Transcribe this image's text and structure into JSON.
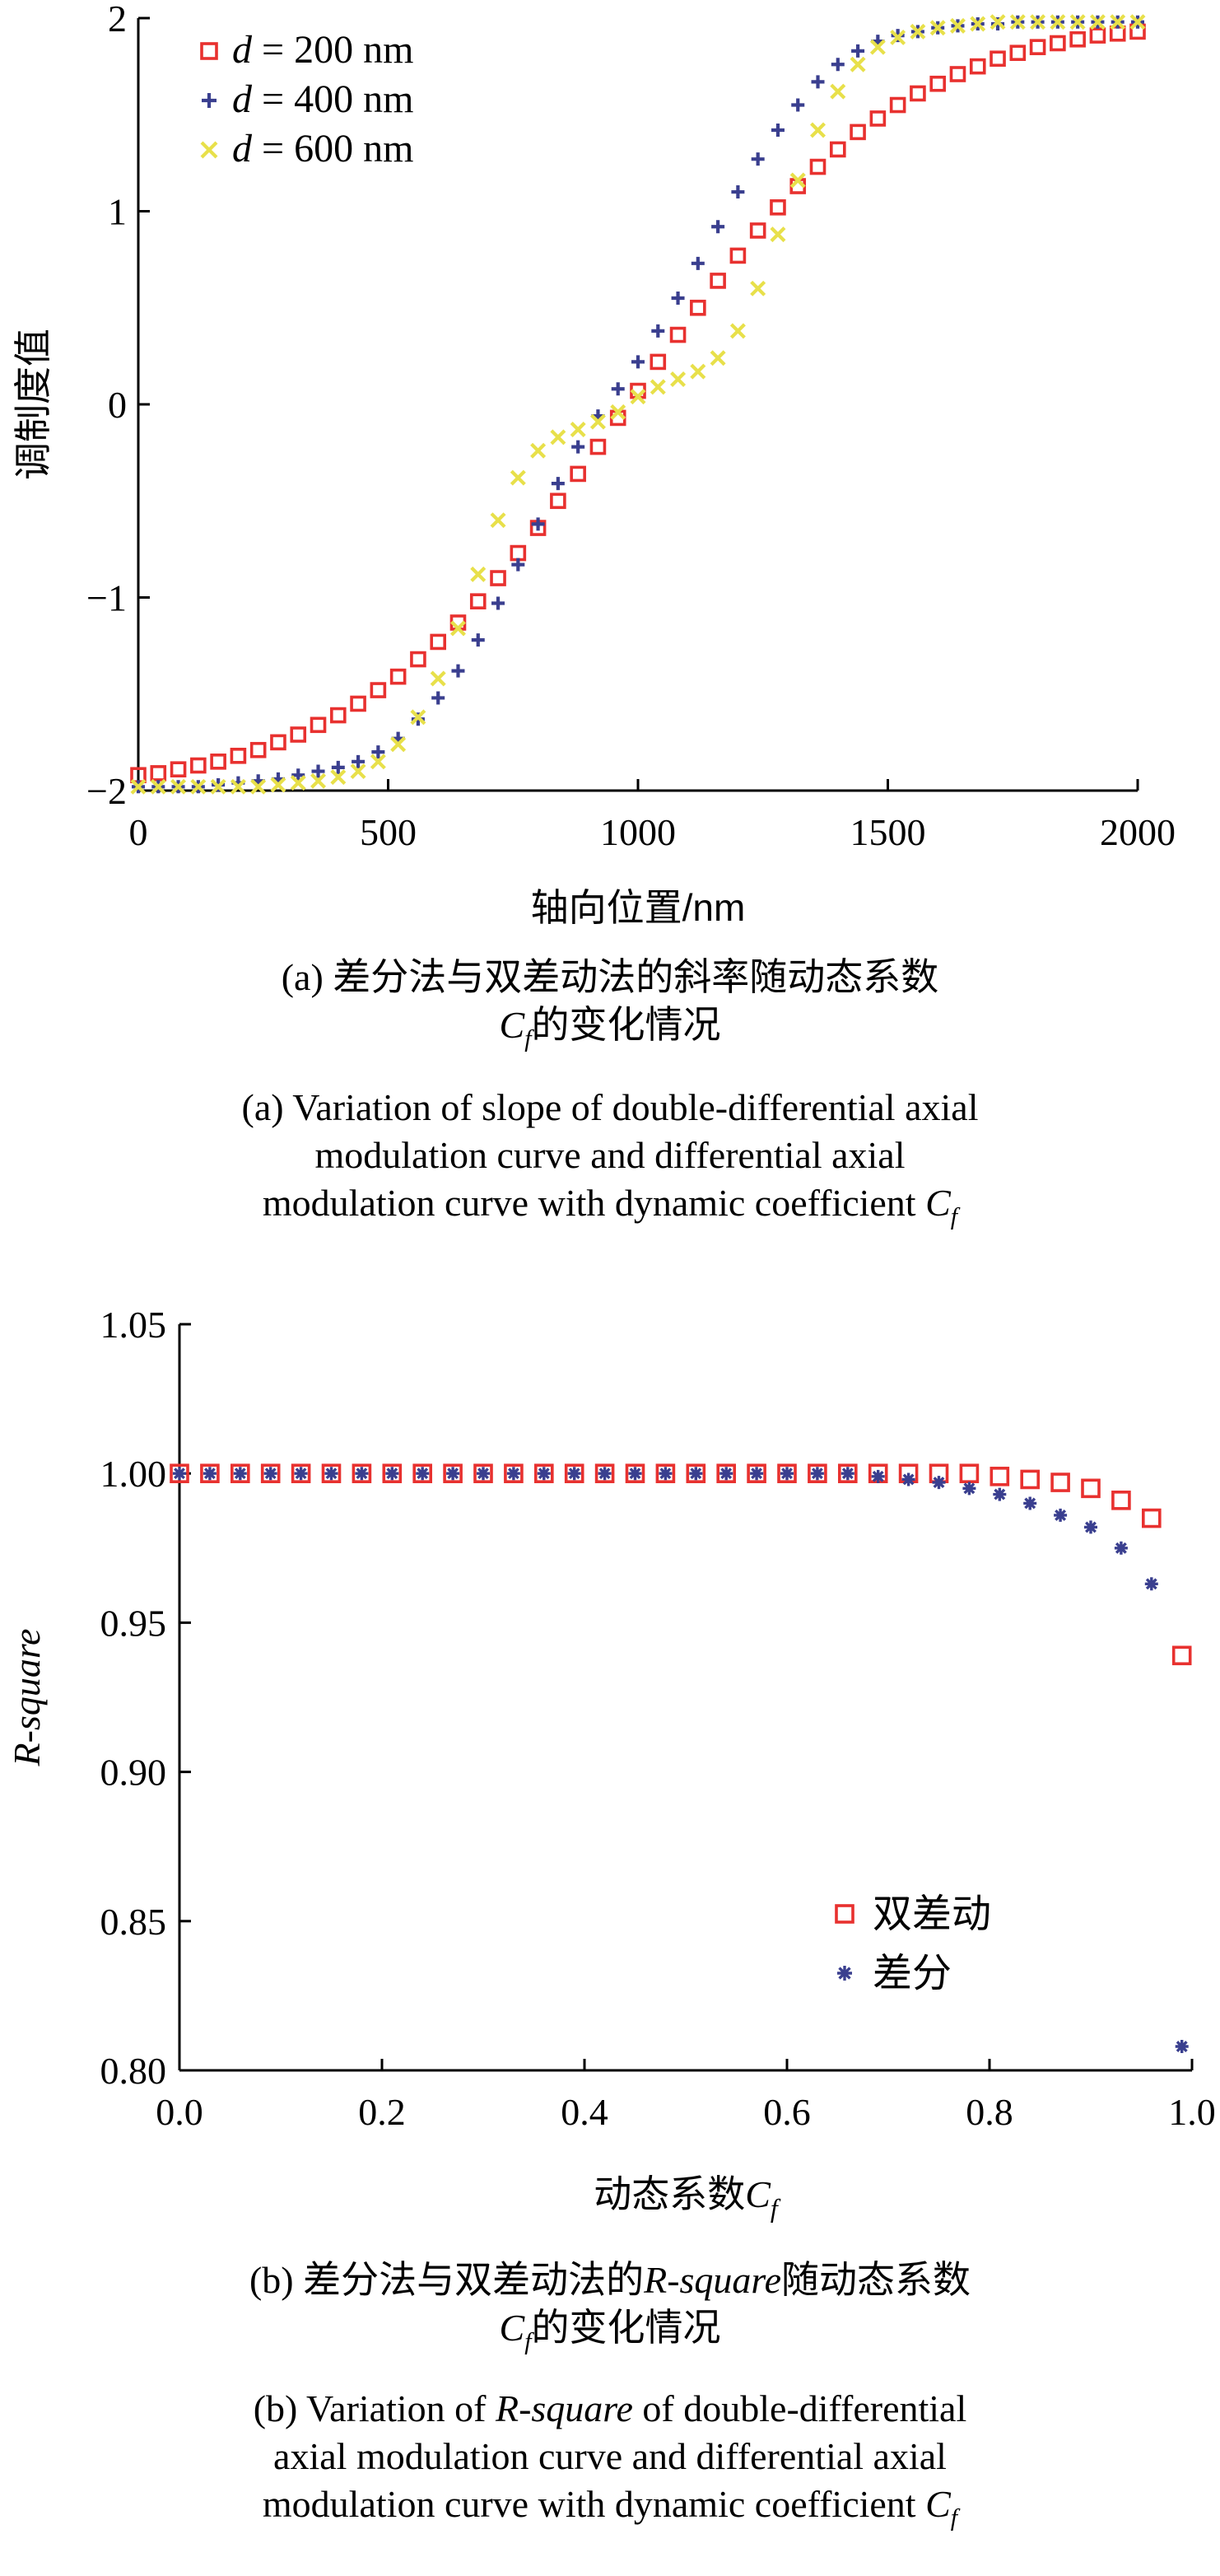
{
  "chart_data": [
    {
      "type": "scatter",
      "title": "",
      "xlabel": "轴向位置/nm",
      "ylabel": "调制度值",
      "xlim": [
        0,
        2000
      ],
      "ylim": [
        -2,
        2
      ],
      "xticks": [
        "0",
        "500",
        "1000",
        "1500",
        "2000"
      ],
      "yticks": [
        "−2",
        "−1",
        "0",
        "1",
        "2"
      ],
      "grid": false,
      "legend_position": "top-left",
      "series": [
        {
          "name": "d = 200 nm",
          "marker": "square",
          "color": "#e8312f",
          "x": [
            0,
            40,
            80,
            120,
            160,
            200,
            240,
            280,
            320,
            360,
            400,
            440,
            480,
            520,
            560,
            600,
            640,
            680,
            720,
            760,
            800,
            840,
            880,
            920,
            960,
            1000,
            1040,
            1080,
            1120,
            1160,
            1200,
            1240,
            1280,
            1320,
            1360,
            1400,
            1440,
            1480,
            1520,
            1560,
            1600,
            1640,
            1680,
            1720,
            1760,
            1800,
            1840,
            1880,
            1920,
            1960,
            2000
          ],
          "y": [
            -1.92,
            -1.91,
            -1.89,
            -1.87,
            -1.85,
            -1.82,
            -1.79,
            -1.75,
            -1.71,
            -1.66,
            -1.61,
            -1.55,
            -1.48,
            -1.41,
            -1.32,
            -1.23,
            -1.13,
            -1.02,
            -0.9,
            -0.77,
            -0.64,
            -0.5,
            -0.36,
            -0.22,
            -0.07,
            0.07,
            0.22,
            0.36,
            0.5,
            0.64,
            0.77,
            0.9,
            1.02,
            1.13,
            1.23,
            1.32,
            1.41,
            1.48,
            1.55,
            1.61,
            1.66,
            1.71,
            1.75,
            1.79,
            1.82,
            1.85,
            1.87,
            1.89,
            1.91,
            1.92,
            1.93
          ]
        },
        {
          "name": "d = 400 nm",
          "marker": "plus",
          "color": "#3a3f8f",
          "x": [
            0,
            40,
            80,
            120,
            160,
            200,
            240,
            280,
            320,
            360,
            400,
            440,
            480,
            520,
            560,
            600,
            640,
            680,
            720,
            760,
            800,
            840,
            880,
            920,
            960,
            1000,
            1040,
            1080,
            1120,
            1160,
            1200,
            1240,
            1280,
            1320,
            1360,
            1400,
            1440,
            1480,
            1520,
            1560,
            1600,
            1640,
            1680,
            1720,
            1760,
            1800,
            1840,
            1880,
            1920,
            1960,
            2000
          ],
          "y": [
            -1.99,
            -1.99,
            -1.98,
            -1.98,
            -1.97,
            -1.96,
            -1.95,
            -1.94,
            -1.92,
            -1.9,
            -1.88,
            -1.85,
            -1.8,
            -1.73,
            -1.63,
            -1.52,
            -1.38,
            -1.22,
            -1.03,
            -0.83,
            -0.62,
            -0.41,
            -0.22,
            -0.06,
            0.08,
            0.22,
            0.38,
            0.55,
            0.73,
            0.92,
            1.1,
            1.27,
            1.42,
            1.55,
            1.67,
            1.76,
            1.83,
            1.88,
            1.91,
            1.93,
            1.95,
            1.96,
            1.97,
            1.97,
            1.98,
            1.98,
            1.99,
            1.99,
            1.99,
            1.99,
            2.0
          ]
        },
        {
          "name": "d = 600 nm",
          "marker": "x",
          "color": "#e8e04a",
          "x": [
            0,
            40,
            80,
            120,
            160,
            200,
            240,
            280,
            320,
            360,
            400,
            440,
            480,
            520,
            560,
            600,
            640,
            680,
            720,
            760,
            800,
            840,
            880,
            920,
            960,
            1000,
            1040,
            1080,
            1120,
            1160,
            1200,
            1240,
            1280,
            1320,
            1360,
            1400,
            1440,
            1480,
            1520,
            1560,
            1600,
            1640,
            1680,
            1720,
            1760,
            1800,
            1840,
            1880,
            1920,
            1960,
            2000
          ],
          "y": [
            -2.0,
            -2.0,
            -2.0,
            -2.0,
            -1.99,
            -1.99,
            -1.98,
            -1.97,
            -1.96,
            -1.95,
            -1.93,
            -1.9,
            -1.85,
            -1.76,
            -1.62,
            -1.42,
            -1.16,
            -0.88,
            -0.6,
            -0.38,
            -0.24,
            -0.17,
            -0.13,
            -0.09,
            -0.04,
            0.04,
            0.09,
            0.13,
            0.17,
            0.24,
            0.38,
            0.6,
            0.88,
            1.16,
            1.42,
            1.62,
            1.76,
            1.85,
            1.9,
            1.93,
            1.95,
            1.96,
            1.97,
            1.98,
            1.99,
            1.99,
            2.0,
            2.0,
            2.0,
            2.0,
            2.0
          ]
        }
      ]
    },
    {
      "type": "scatter",
      "title": "",
      "xlabel": "动态系数C",
      "xlabel_sub": "f",
      "ylabel": "R-square",
      "xlim": [
        0,
        1
      ],
      "ylim": [
        0.8,
        1.05
      ],
      "xticks": [
        "0.0",
        "0.2",
        "0.4",
        "0.6",
        "0.8",
        "1.0"
      ],
      "yticks": [
        "0.80",
        "0.85",
        "0.90",
        "0.95",
        "1.00",
        "1.05"
      ],
      "grid": false,
      "legend_position": "bottom-right",
      "series": [
        {
          "name": "双差动",
          "marker": "square",
          "color": "#e8312f",
          "x": [
            0.0,
            0.03,
            0.06,
            0.09,
            0.12,
            0.15,
            0.18,
            0.21,
            0.24,
            0.27,
            0.3,
            0.33,
            0.36,
            0.39,
            0.42,
            0.45,
            0.48,
            0.51,
            0.54,
            0.57,
            0.6,
            0.63,
            0.66,
            0.69,
            0.72,
            0.75,
            0.78,
            0.81,
            0.84,
            0.87,
            0.9,
            0.93,
            0.96,
            0.99
          ],
          "y": [
            1.0,
            1.0,
            1.0,
            1.0,
            1.0,
            1.0,
            1.0,
            1.0,
            1.0,
            1.0,
            1.0,
            1.0,
            1.0,
            1.0,
            1.0,
            1.0,
            1.0,
            1.0,
            1.0,
            1.0,
            1.0,
            1.0,
            1.0,
            1.0,
            1.0,
            1.0,
            1.0,
            0.999,
            0.998,
            0.997,
            0.995,
            0.991,
            0.985,
            0.939
          ]
        },
        {
          "name": "差分",
          "marker": "star",
          "color": "#3a3f8f",
          "x": [
            0.0,
            0.03,
            0.06,
            0.09,
            0.12,
            0.15,
            0.18,
            0.21,
            0.24,
            0.27,
            0.3,
            0.33,
            0.36,
            0.39,
            0.42,
            0.45,
            0.48,
            0.51,
            0.54,
            0.57,
            0.6,
            0.63,
            0.66,
            0.69,
            0.72,
            0.75,
            0.78,
            0.81,
            0.84,
            0.87,
            0.9,
            0.93,
            0.96,
            0.99
          ],
          "y": [
            1.0,
            1.0,
            1.0,
            1.0,
            1.0,
            1.0,
            1.0,
            1.0,
            1.0,
            1.0,
            1.0,
            1.0,
            1.0,
            1.0,
            1.0,
            1.0,
            1.0,
            1.0,
            1.0,
            1.0,
            1.0,
            1.0,
            1.0,
            0.999,
            0.998,
            0.997,
            0.995,
            0.993,
            0.99,
            0.986,
            0.982,
            0.975,
            0.963,
            0.808
          ]
        }
      ]
    }
  ],
  "captions": {
    "a_cn_line1": "(a) 差分法与双差动法的斜率随动态系数",
    "a_cn_line2_var": "C",
    "a_cn_line2_sub": "f",
    "a_cn_line2_rest": "的变化情况",
    "a_en_line1": "(a) Variation of slope of double-differential axial",
    "a_en_line2": "modulation curve and differential axial",
    "a_en_line3_text": "modulation curve with dynamic coefficient ",
    "a_en_line3_var": "C",
    "a_en_line3_sub": "f",
    "b_cn_line1_pre": "(b) 差分法与双差动法的",
    "b_cn_line1_var": "R-square",
    "b_cn_line1_post": "随动态系数",
    "b_cn_line2_var": "C",
    "b_cn_line2_sub": "f",
    "b_cn_line2_rest": "的变化情况",
    "b_en_line1_pre": "(b) Variation of ",
    "b_en_line1_var": "R-square",
    "b_en_line1_post": " of double-differential",
    "b_en_line2": "axial modulation curve and differential axial",
    "b_en_line3_text": "modulation curve with dynamic coefficient ",
    "b_en_line3_var": "C",
    "b_en_line3_sub": "f"
  }
}
